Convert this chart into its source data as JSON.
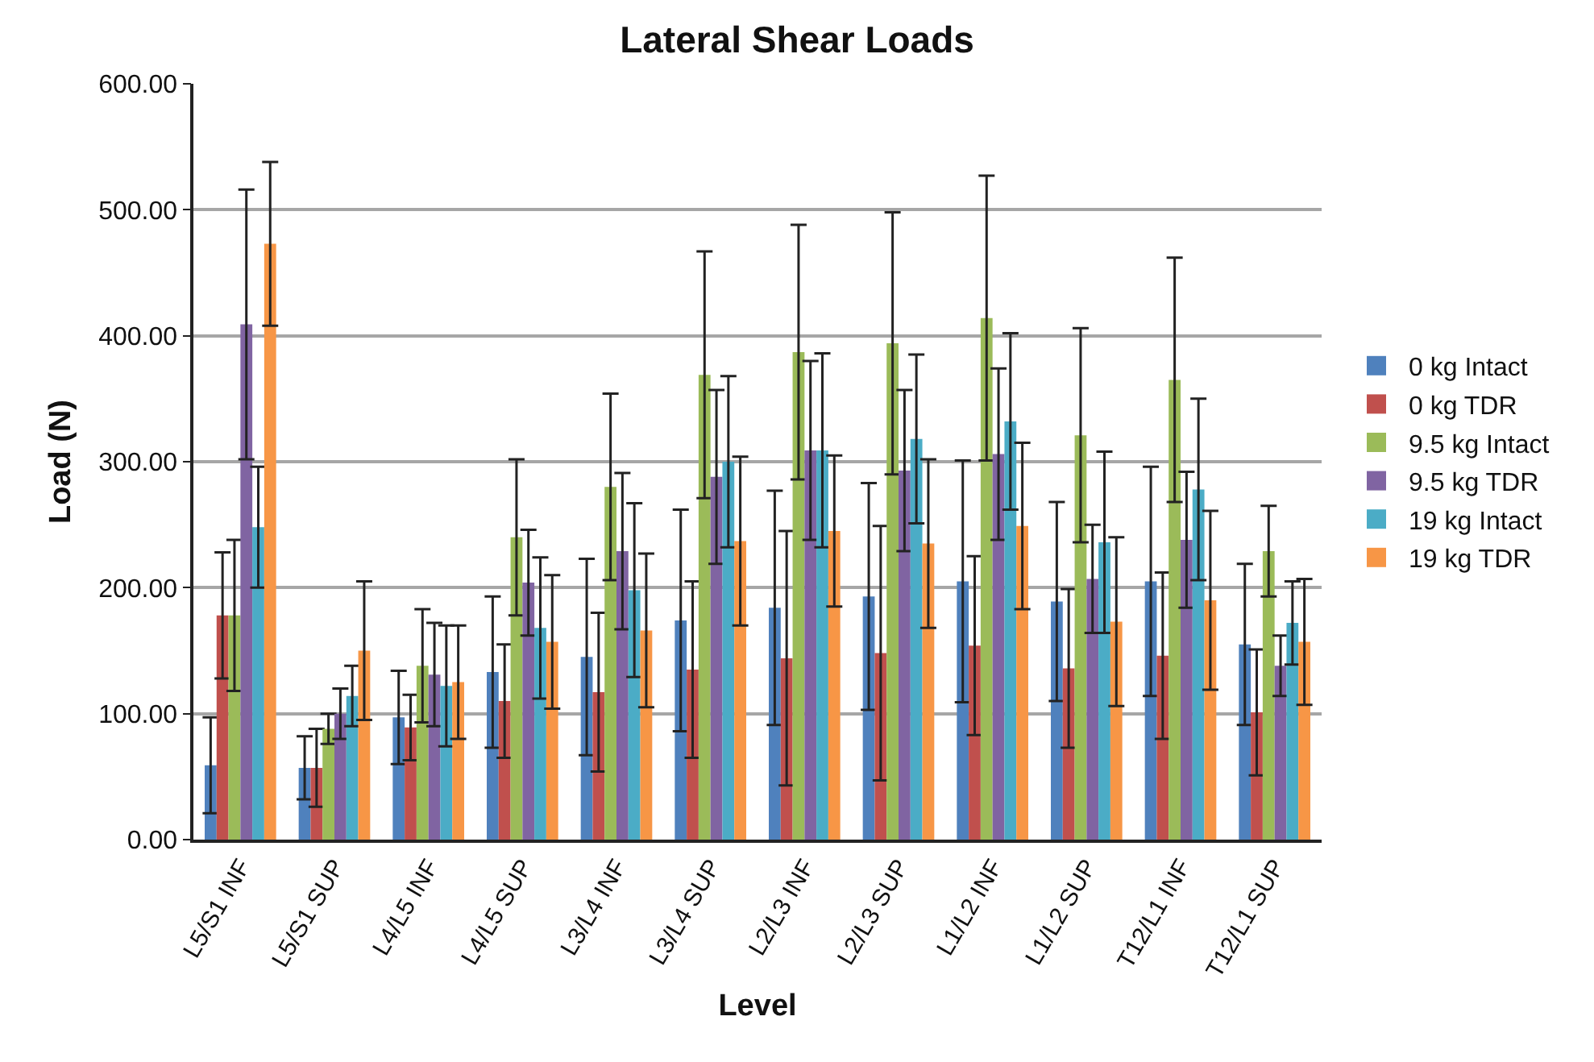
{
  "chart_data": {
    "type": "bar",
    "title": "Lateral Shear Loads",
    "xlabel": "Level",
    "ylabel": "Load (N)",
    "categories": [
      "L5/S1 INF",
      "L5/S1 SUP",
      "L4/L5 INF",
      "L4/L5 SUP",
      "L3/L4 INF",
      "L3/L4 SUP",
      "L2/L3 INF",
      "L2/L3 SUP",
      "L1/L2 INF",
      "L1/L2 SUP",
      "T12/L1 INF",
      "T12/L1 SUP"
    ],
    "series": [
      {
        "name": "0 kg Intact",
        "color": "#4f81bd",
        "values": [
          59,
          57,
          97,
          133,
          145,
          174,
          184,
          193,
          205,
          189,
          205,
          155
        ],
        "errors": [
          38,
          25,
          37,
          60,
          78,
          88,
          93,
          90,
          96,
          79,
          91,
          64
        ]
      },
      {
        "name": "0 kg TDR",
        "color": "#c0504d",
        "values": [
          178,
          57,
          89,
          110,
          117,
          135,
          144,
          148,
          154,
          136,
          146,
          101
        ],
        "errors": [
          50,
          31,
          26,
          45,
          63,
          70,
          101,
          101,
          71,
          63,
          66,
          50
        ]
      },
      {
        "name": "9.5 kg Intact",
        "color": "#9bbb59",
        "values": [
          178,
          88,
          138,
          240,
          280,
          369,
          387,
          394,
          414,
          321,
          365,
          229
        ],
        "errors": [
          60,
          12,
          45,
          62,
          74,
          98,
          101,
          104,
          113,
          85,
          97,
          36
        ]
      },
      {
        "name": "9.5 kg TDR",
        "color": "#8064a2",
        "values": [
          409,
          100,
          131,
          204,
          229,
          288,
          309,
          293,
          306,
          207,
          238,
          138
        ],
        "errors": [
          107,
          20,
          41,
          42,
          62,
          69,
          71,
          64,
          68,
          43,
          54,
          24
        ]
      },
      {
        "name": "19 kg Intact",
        "color": "#4bacc6",
        "values": [
          248,
          114,
          122,
          168,
          198,
          300,
          309,
          318,
          332,
          236,
          278,
          172
        ],
        "errors": [
          48,
          24,
          48,
          56,
          69,
          68,
          77,
          67,
          70,
          72,
          72,
          33
        ]
      },
      {
        "name": "19 kg TDR",
        "color": "#f79646",
        "values": [
          473,
          150,
          125,
          157,
          166,
          237,
          245,
          235,
          249,
          173,
          190,
          157
        ],
        "errors": [
          65,
          55,
          45,
          53,
          61,
          67,
          60,
          67,
          66,
          67,
          71,
          50
        ]
      }
    ],
    "ylim": [
      0,
      600
    ],
    "yticks": [
      {
        "value": 0,
        "label": "0.00"
      },
      {
        "value": 100,
        "label": "100.00"
      },
      {
        "value": 200,
        "label": "200.00"
      },
      {
        "value": 300,
        "label": "300.00"
      },
      {
        "value": 400,
        "label": "400.00"
      },
      {
        "value": 500,
        "label": "500.00"
      },
      {
        "value": 600,
        "label": "600.00"
      }
    ],
    "grid": "y",
    "legend": "right"
  }
}
